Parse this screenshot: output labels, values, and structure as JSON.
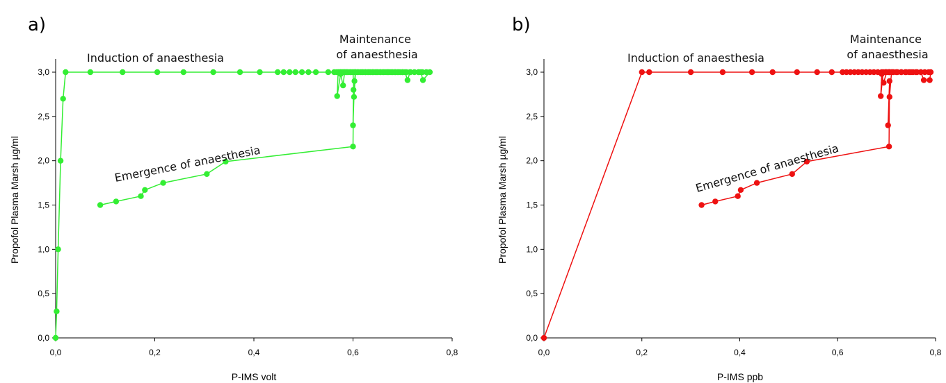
{
  "chart_data": [
    {
      "panel_label": "a)",
      "type": "line",
      "xlabel": "P-IMS volt",
      "ylabel": "Propofol Plasma Marsh µg/ml",
      "xlim": [
        0,
        0.8
      ],
      "ylim": [
        0,
        3
      ],
      "xticks": [
        "0,0",
        "0,2",
        "0,4",
        "0,6",
        "0,8"
      ],
      "yticks": [
        "0,0",
        "0,5",
        "1,0",
        "1,5",
        "2,0",
        "2,5",
        "3,0"
      ],
      "color": "#33ee33",
      "grid": false,
      "annotations": [
        {
          "lines": [
            "Induction of anaesthesia"
          ]
        },
        {
          "lines": [
            "Maintenance",
            "of anaesthesia"
          ]
        },
        {
          "lines": [
            "Emergence of anaesthesia"
          ]
        }
      ],
      "series": [
        {
          "x": [
            0.0,
            0.002,
            0.005,
            0.01,
            0.015,
            0.02,
            0.07,
            0.135,
            0.205,
            0.258,
            0.318,
            0.372,
            0.412,
            0.448,
            0.46,
            0.472,
            0.484,
            0.497,
            0.51,
            0.525,
            0.55,
            0.562,
            0.567,
            0.575,
            0.58,
            0.588,
            0.595,
            0.603,
            0.61,
            0.618,
            0.625,
            0.632,
            0.64,
            0.648,
            0.655,
            0.662,
            0.67,
            0.678,
            0.685,
            0.692,
            0.7,
            0.708,
            0.716,
            0.724,
            0.732,
            0.74,
            0.748,
            0.755,
            0.741,
            0.737,
            0.733,
            0.715,
            0.71,
            0.705,
            0.7,
            0.695,
            0.69,
            0.685,
            0.68,
            0.675,
            0.672,
            0.668,
            0.665,
            0.66,
            0.655,
            0.65,
            0.645,
            0.64,
            0.635,
            0.63,
            0.625,
            0.62,
            0.615,
            0.61,
            0.605,
            0.6,
            0.596,
            0.592,
            0.588,
            0.585,
            0.582,
            0.578,
            0.575,
            0.572,
            0.57,
            0.568,
            0.575,
            0.58,
            0.583,
            0.6,
            0.602,
            0.605,
            0.603,
            0.6,
            0.601,
            0.6,
            0.343,
            0.305,
            0.217,
            0.18,
            0.172,
            0.122,
            0.09
          ],
          "y": [
            0.0,
            0.3,
            1.0,
            2.0,
            2.7,
            3.0,
            3.0,
            3.0,
            3.0,
            3.0,
            3.0,
            3.0,
            3.0,
            3.0,
            3.0,
            3.0,
            3.0,
            3.0,
            3.0,
            3.0,
            3.0,
            3.0,
            3.0,
            3.0,
            3.0,
            3.0,
            3.0,
            3.0,
            3.0,
            3.0,
            3.0,
            3.0,
            3.0,
            3.0,
            3.0,
            3.0,
            3.0,
            3.0,
            3.0,
            3.0,
            3.0,
            3.0,
            3.0,
            3.0,
            3.0,
            3.0,
            3.0,
            3.0,
            2.91,
            3.0,
            3.0,
            3.0,
            2.91,
            3.0,
            3.0,
            3.0,
            3.0,
            3.0,
            3.0,
            3.0,
            3.0,
            3.0,
            3.0,
            3.0,
            3.0,
            3.0,
            3.0,
            3.0,
            3.0,
            3.0,
            3.0,
            3.0,
            3.0,
            3.0,
            3.0,
            3.0,
            3.0,
            3.0,
            3.0,
            3.0,
            3.0,
            3.0,
            3.0,
            3.0,
            3.0,
            2.73,
            2.98,
            2.85,
            3.0,
            3.0,
            2.72,
            3.0,
            2.9,
            2.4,
            2.8,
            2.16,
            1.99,
            1.85,
            1.75,
            1.67,
            1.6,
            1.54,
            1.5
          ]
        }
      ]
    },
    {
      "panel_label": "b)",
      "type": "line",
      "xlabel": "P-IMS ppb",
      "ylabel": "Propofol Plasma Marsh µg/ml",
      "xlim": [
        0,
        0.8
      ],
      "ylim": [
        0,
        3
      ],
      "xticks": [
        "0,0",
        "0,2",
        "0,4",
        "0,6",
        "0,8"
      ],
      "yticks": [
        "0,0",
        "0,5",
        "1,0",
        "1,5",
        "2,0",
        "2,5",
        "3,0"
      ],
      "color": "#ee1111",
      "grid": false,
      "annotations": [
        {
          "lines": [
            "Induction of anaesthesia"
          ]
        },
        {
          "lines": [
            "Maintenance",
            "of anaesthesia"
          ]
        },
        {
          "lines": [
            "Emergence of anaesthesia"
          ]
        }
      ],
      "series": [
        {
          "x": [
            0.0,
            0.2,
            0.215,
            0.3,
            0.365,
            0.425,
            0.467,
            0.517,
            0.558,
            0.588,
            0.61,
            0.618,
            0.626,
            0.634,
            0.642,
            0.65,
            0.658,
            0.666,
            0.674,
            0.682,
            0.69,
            0.698,
            0.706,
            0.714,
            0.722,
            0.73,
            0.738,
            0.746,
            0.754,
            0.762,
            0.77,
            0.778,
            0.786,
            0.79,
            0.788,
            0.776,
            0.77,
            0.76,
            0.75,
            0.74,
            0.73,
            0.72,
            0.712,
            0.705,
            0.698,
            0.693,
            0.688,
            0.69,
            0.694,
            0.7,
            0.705,
            0.71,
            0.706,
            0.703,
            0.706,
            0.705,
            0.537,
            0.507,
            0.435,
            0.402,
            0.396,
            0.35,
            0.322
          ],
          "y": [
            0.0,
            3.0,
            3.0,
            3.0,
            3.0,
            3.0,
            3.0,
            3.0,
            3.0,
            3.0,
            3.0,
            3.0,
            3.0,
            3.0,
            3.0,
            3.0,
            3.0,
            3.0,
            3.0,
            3.0,
            3.0,
            3.0,
            3.0,
            3.0,
            3.0,
            3.0,
            3.0,
            3.0,
            3.0,
            3.0,
            3.0,
            3.0,
            3.0,
            3.0,
            2.91,
            2.91,
            3.0,
            3.0,
            3.0,
            3.0,
            3.0,
            3.0,
            3.0,
            3.0,
            3.0,
            3.0,
            2.73,
            2.98,
            2.88,
            3.0,
            3.0,
            3.0,
            2.72,
            2.4,
            2.9,
            2.16,
            1.99,
            1.85,
            1.75,
            1.67,
            1.6,
            1.54,
            1.5
          ]
        }
      ]
    }
  ]
}
